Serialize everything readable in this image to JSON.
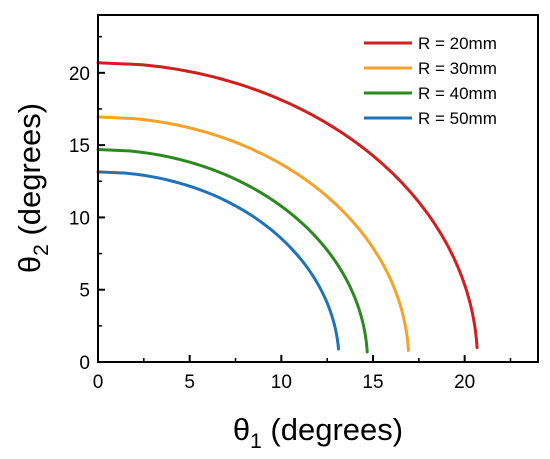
{
  "chart_data": {
    "type": "line",
    "xlabel": {
      "symbol": "θ",
      "sub": "1",
      "rest": " (degrees)"
    },
    "ylabel": {
      "symbol": "θ",
      "sub": "2",
      "rest": " (degrees)"
    },
    "xlim": [
      0,
      24
    ],
    "ylim": [
      0,
      24
    ],
    "xticks": [
      0,
      5,
      10,
      15,
      20
    ],
    "yticks": [
      0,
      5,
      10,
      15,
      20
    ],
    "grid": false,
    "legend_position": "top-right",
    "series": [
      {
        "name": "R = 20mm",
        "radius": 20.7,
        "y_end": 1.0,
        "color": "#d01f1f"
      },
      {
        "name": "R = 30mm",
        "radius": 16.95,
        "y_end": 0.8,
        "color": "#f5a12a"
      },
      {
        "name": "R = 40mm",
        "radius": 14.7,
        "y_end": 0.7,
        "color": "#2b8a1e"
      },
      {
        "name": "R = 50mm",
        "radius": 13.15,
        "y_end": 0.9,
        "color": "#1f74b8"
      }
    ]
  }
}
